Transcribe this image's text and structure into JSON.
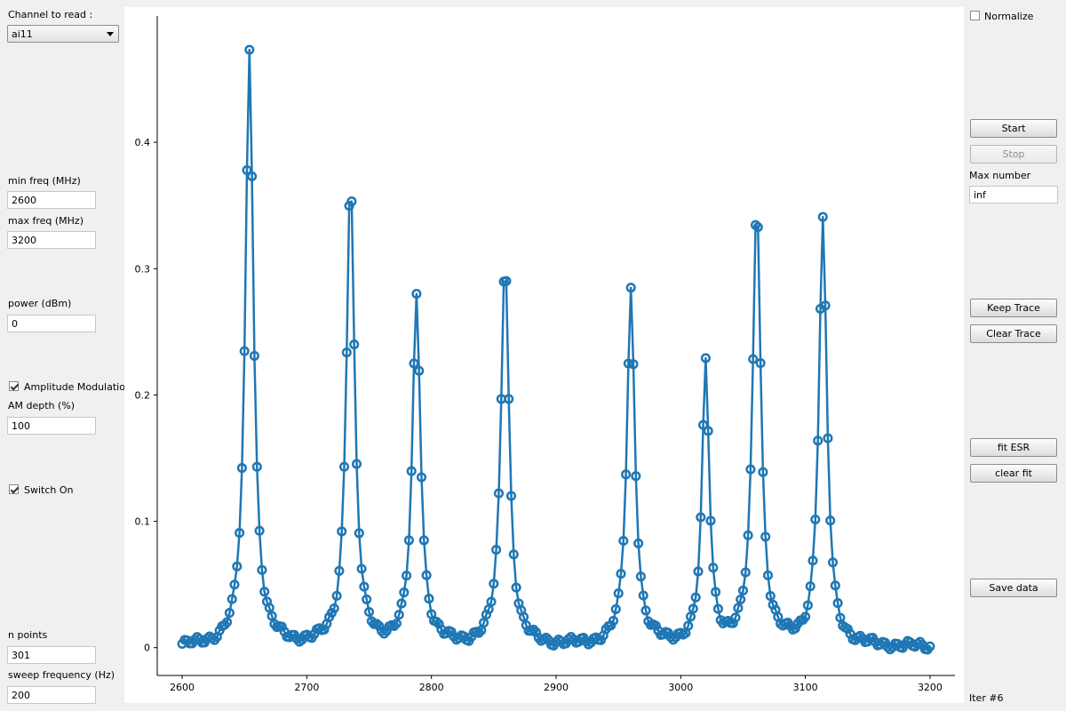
{
  "left_panel": {
    "channel_label": "Channel to read :",
    "channel_value": "ai11",
    "min_freq_label": "min freq (MHz)",
    "min_freq_value": "2600",
    "max_freq_label": "max freq (MHz)",
    "max_freq_value": "3200",
    "power_label": "power (dBm)",
    "power_value": "0",
    "am_label": "Amplitude Modulation",
    "am_checked": true,
    "am_depth_label": "AM depth (%)",
    "am_depth_value": "100",
    "switch_label": "Switch On",
    "switch_checked": true,
    "n_points_label": "n points",
    "n_points_value": "301",
    "sweep_label": "sweep frequency (Hz)",
    "sweep_value": "200"
  },
  "right_panel": {
    "normalize_label": "Normalize",
    "normalize_checked": false,
    "start_label": "Start",
    "stop_label": "Stop",
    "max_number_label": "Max number",
    "max_number_value": "inf",
    "keep_trace_label": "Keep Trace",
    "clear_trace_label": "Clear Trace",
    "fit_esr_label": "fit ESR",
    "clear_fit_label": "clear fit",
    "save_data_label": "Save data",
    "iter_label": "Iter #6"
  },
  "colors": {
    "trace": "#1f77b4",
    "panel_bg": "#f0f0f0",
    "plot_bg": "#ffffff"
  },
  "chart_data": {
    "type": "line",
    "title": "",
    "xlabel": "",
    "ylabel": "",
    "xlim": [
      2580,
      3220
    ],
    "ylim": [
      -0.022,
      0.5
    ],
    "x_ticks": [
      2600,
      2700,
      2800,
      2900,
      3000,
      3100,
      3200
    ],
    "y_ticks": [
      0,
      0.1,
      0.2,
      0.3,
      0.4
    ],
    "markers": "hollow-circle",
    "grid": false,
    "legend": "none",
    "peaks": [
      {
        "center": 2654,
        "amplitude": 0.474,
        "width": 3.9
      },
      {
        "center": 2735,
        "amplitude": 0.372,
        "width": 3.9
      },
      {
        "center": 2788,
        "amplitude": 0.276,
        "width": 3.9
      },
      {
        "center": 2859,
        "amplitude": 0.31,
        "width": 3.9
      },
      {
        "center": 2960,
        "amplitude": 0.281,
        "width": 3.9
      },
      {
        "center": 3020,
        "amplitude": 0.222,
        "width": 3.5
      },
      {
        "center": 3061,
        "amplitude": 0.354,
        "width": 3.9
      },
      {
        "center": 3114,
        "amplitude": 0.335,
        "width": 3.9
      }
    ],
    "n_points": 301,
    "x_start": 2600,
    "x_end": 3200
  }
}
